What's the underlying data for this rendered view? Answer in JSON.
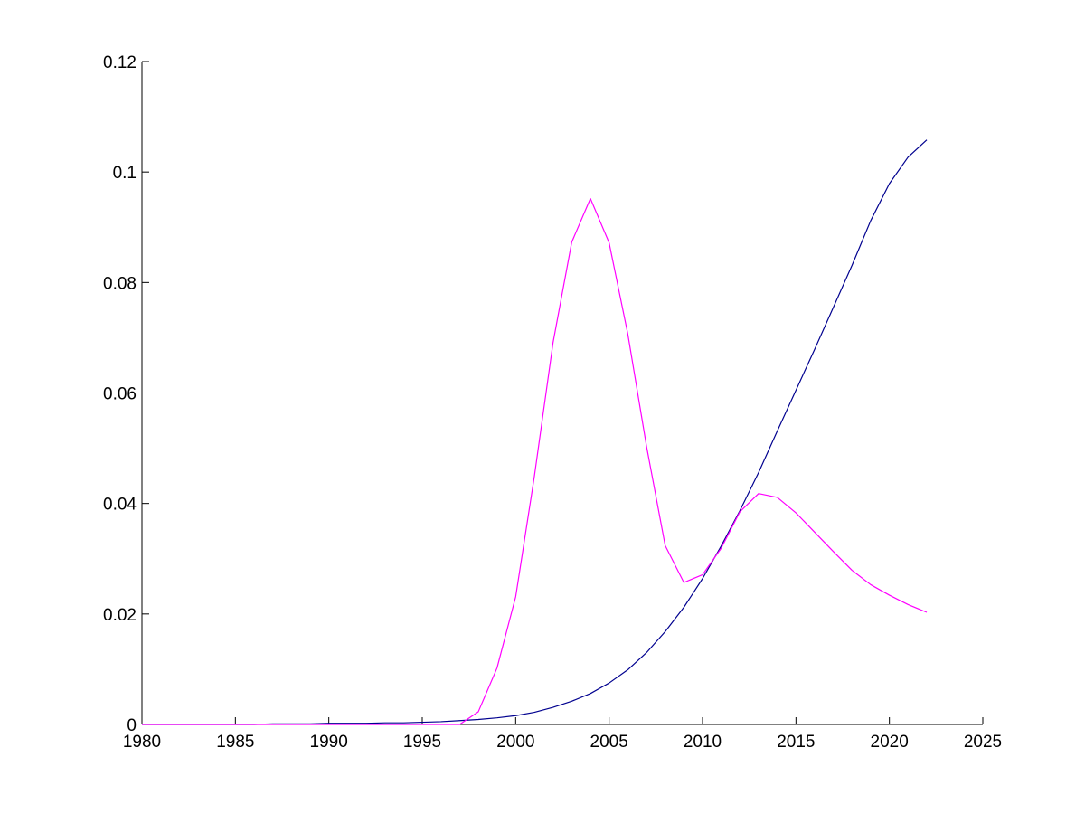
{
  "chart_data": {
    "type": "line",
    "title": "",
    "xlabel": "",
    "ylabel": "",
    "xlim": [
      1980,
      2025
    ],
    "ylim": [
      0,
      0.12
    ],
    "grid": false,
    "xticks": [
      "1980",
      "1985",
      "1990",
      "1995",
      "2000",
      "2005",
      "2010",
      "2015",
      "2020",
      "2025"
    ],
    "yticks": [
      "0",
      "0.02",
      "0.04",
      "0.06",
      "0.08",
      "0.1",
      "0.12"
    ],
    "x": [
      1980,
      1981,
      1982,
      1983,
      1984,
      1985,
      1986,
      1987,
      1988,
      1989,
      1990,
      1991,
      1992,
      1993,
      1994,
      1995,
      1996,
      1997,
      1998,
      1999,
      2000,
      2001,
      2002,
      2003,
      2004,
      2005,
      2006,
      2007,
      2008,
      2009,
      2010,
      2011,
      2012,
      2013,
      2014,
      2015,
      2016,
      2017,
      2018,
      2019,
      2020,
      2021,
      2022
    ],
    "series": [
      {
        "color": "#00008f",
        "values": [
          0,
          0,
          0,
          0,
          0,
          0,
          0,
          0.0001,
          0.0001,
          0.0001,
          0.0002,
          0.0002,
          0.0002,
          0.0003,
          0.0003,
          0.0004,
          0.0005,
          0.0007,
          0.0009,
          0.0012,
          0.0016,
          0.0022,
          0.0031,
          0.0042,
          0.0056,
          0.0075,
          0.0099,
          0.013,
          0.0168,
          0.0212,
          0.0264,
          0.0323,
          0.0387,
          0.0456,
          0.0531,
          0.0605,
          0.0679,
          0.0755,
          0.0831,
          0.0912,
          0.0979,
          0.1027,
          0.1058
        ]
      },
      {
        "color": "#ff00ff",
        "values": [
          0,
          0,
          0,
          0,
          0,
          0,
          0,
          0,
          0,
          0,
          0,
          0,
          0,
          0,
          0,
          0,
          0,
          0,
          0.0023,
          0.0102,
          0.0231,
          0.0449,
          0.0691,
          0.0873,
          0.0952,
          0.0872,
          0.0707,
          0.0504,
          0.0324,
          0.0257,
          0.0271,
          0.0319,
          0.0385,
          0.0418,
          0.0411,
          0.0383,
          0.0348,
          0.0313,
          0.0279,
          0.0253,
          0.0234,
          0.0217,
          0.0203
        ]
      }
    ]
  }
}
